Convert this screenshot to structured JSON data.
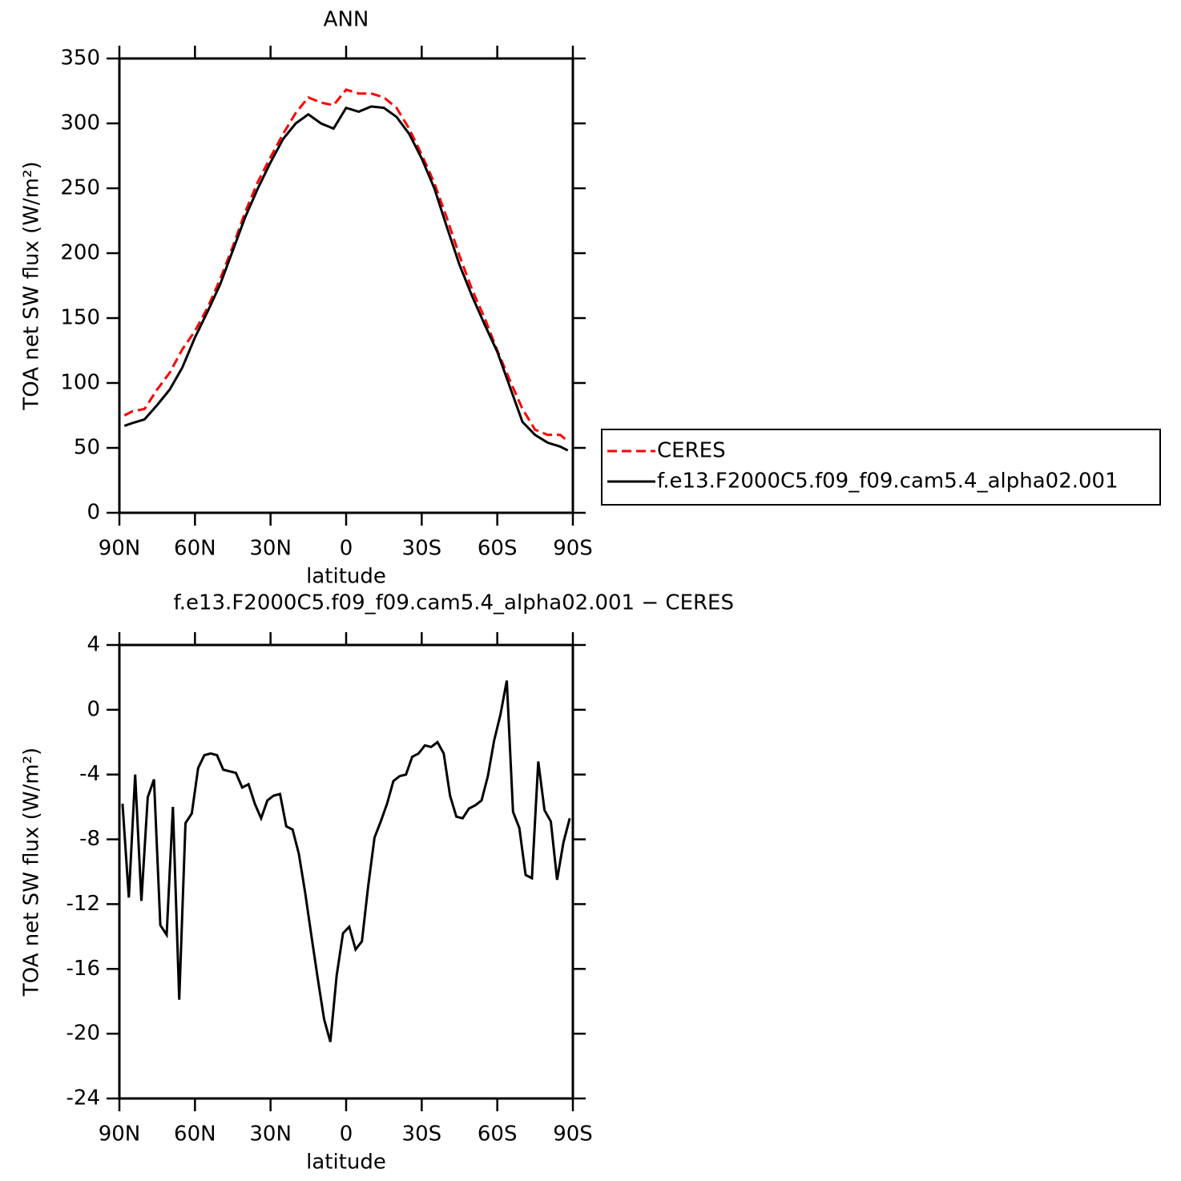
{
  "chart_data": [
    {
      "type": "line",
      "title": "ANN",
      "xlabel": "latitude",
      "ylabel": "TOA net SW flux (W/m²)",
      "x": [
        88,
        85,
        80,
        75,
        70,
        65,
        60,
        55,
        50,
        45,
        40,
        35,
        30,
        25,
        20,
        15,
        10,
        5,
        0,
        -5,
        -10,
        -15,
        -20,
        -25,
        -30,
        -35,
        -40,
        -45,
        -50,
        -55,
        -60,
        -65,
        -70,
        -75,
        -80,
        -85,
        -88
      ],
      "series": [
        {
          "name": "CERES",
          "color": "#ff0000",
          "line_style": "dashed",
          "values": [
            75,
            78,
            80,
            95,
            108,
            126,
            140,
            158,
            180,
            205,
            232,
            255,
            274,
            292,
            308,
            320,
            316,
            314,
            326,
            323,
            323,
            320,
            312,
            296,
            276,
            254,
            227,
            198,
            172,
            150,
            125,
            102,
            80,
            64,
            60,
            60,
            55
          ]
        },
        {
          "name": "f.e13.F2000C5.f09_f09.cam5.4_alpha02.001",
          "color": "#000000",
          "line_style": "solid",
          "values": [
            67,
            69,
            72,
            83,
            95,
            112,
            135,
            155,
            176,
            202,
            228,
            250,
            270,
            288,
            300,
            307,
            300,
            296,
            312,
            309,
            313,
            312,
            305,
            292,
            273,
            250,
            220,
            191,
            167,
            145,
            124,
            97,
            70,
            60,
            54,
            51,
            48
          ]
        }
      ],
      "xlim": [
        90,
        -90
      ],
      "xticks": [
        {
          "value": 90,
          "label": "90N"
        },
        {
          "value": 60,
          "label": "60N"
        },
        {
          "value": 30,
          "label": "30N"
        },
        0,
        {
          "value": -30,
          "label": "30S"
        },
        {
          "value": -60,
          "label": "60S"
        },
        {
          "value": -90,
          "label": "90S"
        }
      ],
      "ylim": [
        0,
        350
      ],
      "yticks": [
        0,
        50,
        100,
        150,
        200,
        250,
        300,
        350
      ],
      "legend": "outside-right"
    },
    {
      "type": "line",
      "title": "f.e13.F2000C5.f09_f09.cam5.4_alpha02.001 − CERES",
      "xlabel": "latitude",
      "ylabel": "TOA net SW flux (W/m²)",
      "x": [
        88.75,
        86.25,
        83.75,
        81.25,
        78.75,
        76.25,
        73.75,
        71.25,
        68.75,
        66.25,
        63.75,
        61.25,
        58.75,
        56.25,
        53.75,
        51.25,
        48.75,
        46.25,
        43.75,
        41.25,
        38.75,
        36.25,
        33.75,
        31.25,
        28.75,
        26.25,
        23.75,
        21.25,
        18.75,
        16.25,
        13.75,
        11.25,
        8.75,
        6.25,
        3.75,
        1.25,
        -1.25,
        -3.75,
        -6.25,
        -8.75,
        -11.25,
        -13.75,
        -16.25,
        -18.75,
        -21.25,
        -23.75,
        -26.25,
        -28.75,
        -31.25,
        -33.75,
        -36.25,
        -38.75,
        -41.25,
        -43.75,
        -46.25,
        -48.75,
        -51.25,
        -53.75,
        -56.25,
        -58.75,
        -61.25,
        -63.75,
        -66.25,
        -68.75,
        -71.25,
        -73.75,
        -76.25,
        -78.75,
        -81.25,
        -83.75,
        -86.25,
        -88.75
      ],
      "values": [
        -5.8,
        -11.6,
        -4.0,
        -11.8,
        -5.4,
        -4.3,
        -13.3,
        -13.9,
        -6.0,
        -17.9,
        -7.0,
        -6.4,
        -3.6,
        -2.8,
        -2.7,
        -2.8,
        -3.7,
        -3.8,
        -3.9,
        -4.8,
        -4.6,
        -5.8,
        -6.7,
        -5.6,
        -5.3,
        -5.2,
        -7.2,
        -7.4,
        -8.9,
        -11.3,
        -14.0,
        -16.6,
        -19.1,
        -20.5,
        -16.4,
        -13.8,
        -13.4,
        -14.8,
        -14.3,
        -10.9,
        -7.9,
        -6.9,
        -5.8,
        -4.4,
        -4.1,
        -4.0,
        -2.9,
        -2.7,
        -2.2,
        -2.3,
        -2.0,
        -2.7,
        -5.3,
        -6.6,
        -6.7,
        -6.1,
        -5.9,
        -5.6,
        -4.1,
        -1.9,
        -0.3,
        1.8,
        -6.3,
        -7.3,
        -10.2,
        -10.4,
        -3.2,
        -6.2,
        -6.9,
        -10.5,
        -8.2,
        -6.7
      ],
      "color": "#000000",
      "xlim": [
        90,
        -90
      ],
      "xticks": [
        {
          "value": 90,
          "label": "90N"
        },
        {
          "value": 60,
          "label": "60N"
        },
        {
          "value": 30,
          "label": "30N"
        },
        0,
        {
          "value": -30,
          "label": "30S"
        },
        {
          "value": -60,
          "label": "60S"
        },
        {
          "value": -90,
          "label": "90S"
        }
      ],
      "ylim": [
        -24,
        4
      ],
      "yticks": [
        -24,
        -20,
        -16,
        -12,
        -8,
        -4,
        0,
        4
      ]
    }
  ]
}
